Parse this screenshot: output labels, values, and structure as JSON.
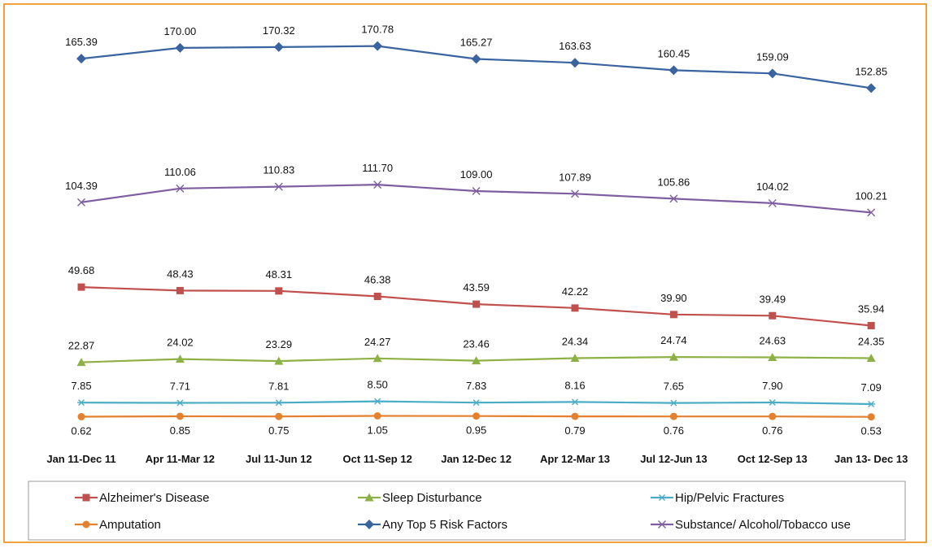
{
  "chart_data": {
    "type": "line",
    "categories": [
      "Jan 11-Dec 11",
      "Apr 11-Mar 12",
      "Jul 11-Jun 12",
      "Oct 11-Sep 12",
      "Jan 12-Dec 12",
      "Apr 12-Mar 13",
      "Jul 12-Jun 13",
      "Oct 12-Sep 13",
      "Jan 13- Dec 13"
    ],
    "series": [
      {
        "name": "Alzheimer's Disease",
        "color": "#c0504d",
        "marker": "square",
        "values": [
          49.68,
          48.43,
          48.31,
          46.38,
          43.59,
          42.22,
          39.9,
          39.49,
          35.94
        ],
        "labels": [
          "49.68",
          "48.43",
          "48.31",
          "46.38",
          "43.59",
          "42.22",
          "39.90",
          "39.49",
          "35.94"
        ]
      },
      {
        "name": "Sleep Disturbance",
        "color": "#8db145",
        "marker": "triangle",
        "values": [
          22.87,
          24.02,
          23.29,
          24.27,
          23.46,
          24.34,
          24.74,
          24.63,
          24.35
        ],
        "labels": [
          "22.87",
          "24.02",
          "23.29",
          "24.27",
          "23.46",
          "24.34",
          "24.74",
          "24.63",
          "24.35"
        ]
      },
      {
        "name": "Hip/Pelvic Fractures",
        "color": "#4bacc6",
        "marker": "asterisk",
        "values": [
          7.85,
          7.71,
          7.81,
          8.5,
          7.83,
          8.16,
          7.65,
          7.9,
          7.09
        ],
        "labels": [
          "7.85",
          "7.71",
          "7.81",
          "8.50",
          "7.83",
          "8.16",
          "7.65",
          "7.90",
          "7.09"
        ]
      },
      {
        "name": "Amputation",
        "color": "#e5802e",
        "marker": "circle",
        "values": [
          0.62,
          0.85,
          0.75,
          1.05,
          0.95,
          0.79,
          0.76,
          0.76,
          0.53
        ],
        "labels": [
          "0.62",
          "0.85",
          "0.75",
          "1.05",
          "0.95",
          "0.79",
          "0.76",
          "0.76",
          "0.53"
        ]
      },
      {
        "name": "Any Top 5 Risk Factors",
        "color": "#3a64a0",
        "marker": "diamond",
        "values": [
          165.39,
          170.0,
          170.32,
          170.78,
          165.27,
          163.63,
          160.45,
          159.09,
          152.85
        ],
        "labels": [
          "165.39",
          "170.00",
          "170.32",
          "170.78",
          "165.27",
          "163.63",
          "160.45",
          "159.09",
          "152.85"
        ]
      },
      {
        "name": "Substance/ Alcohol/Tobacco use",
        "color": "#7e5ea1",
        "marker": "x",
        "values": [
          104.39,
          110.06,
          110.83,
          111.7,
          109.0,
          107.89,
          105.86,
          104.02,
          100.21
        ],
        "labels": [
          "104.39",
          "110.06",
          "110.83",
          "111.70",
          "109.00",
          "107.89",
          "105.86",
          "104.02",
          "100.21"
        ]
      }
    ],
    "legend_position": "bottom",
    "grid": false,
    "ylim": [
      0,
      180
    ]
  }
}
